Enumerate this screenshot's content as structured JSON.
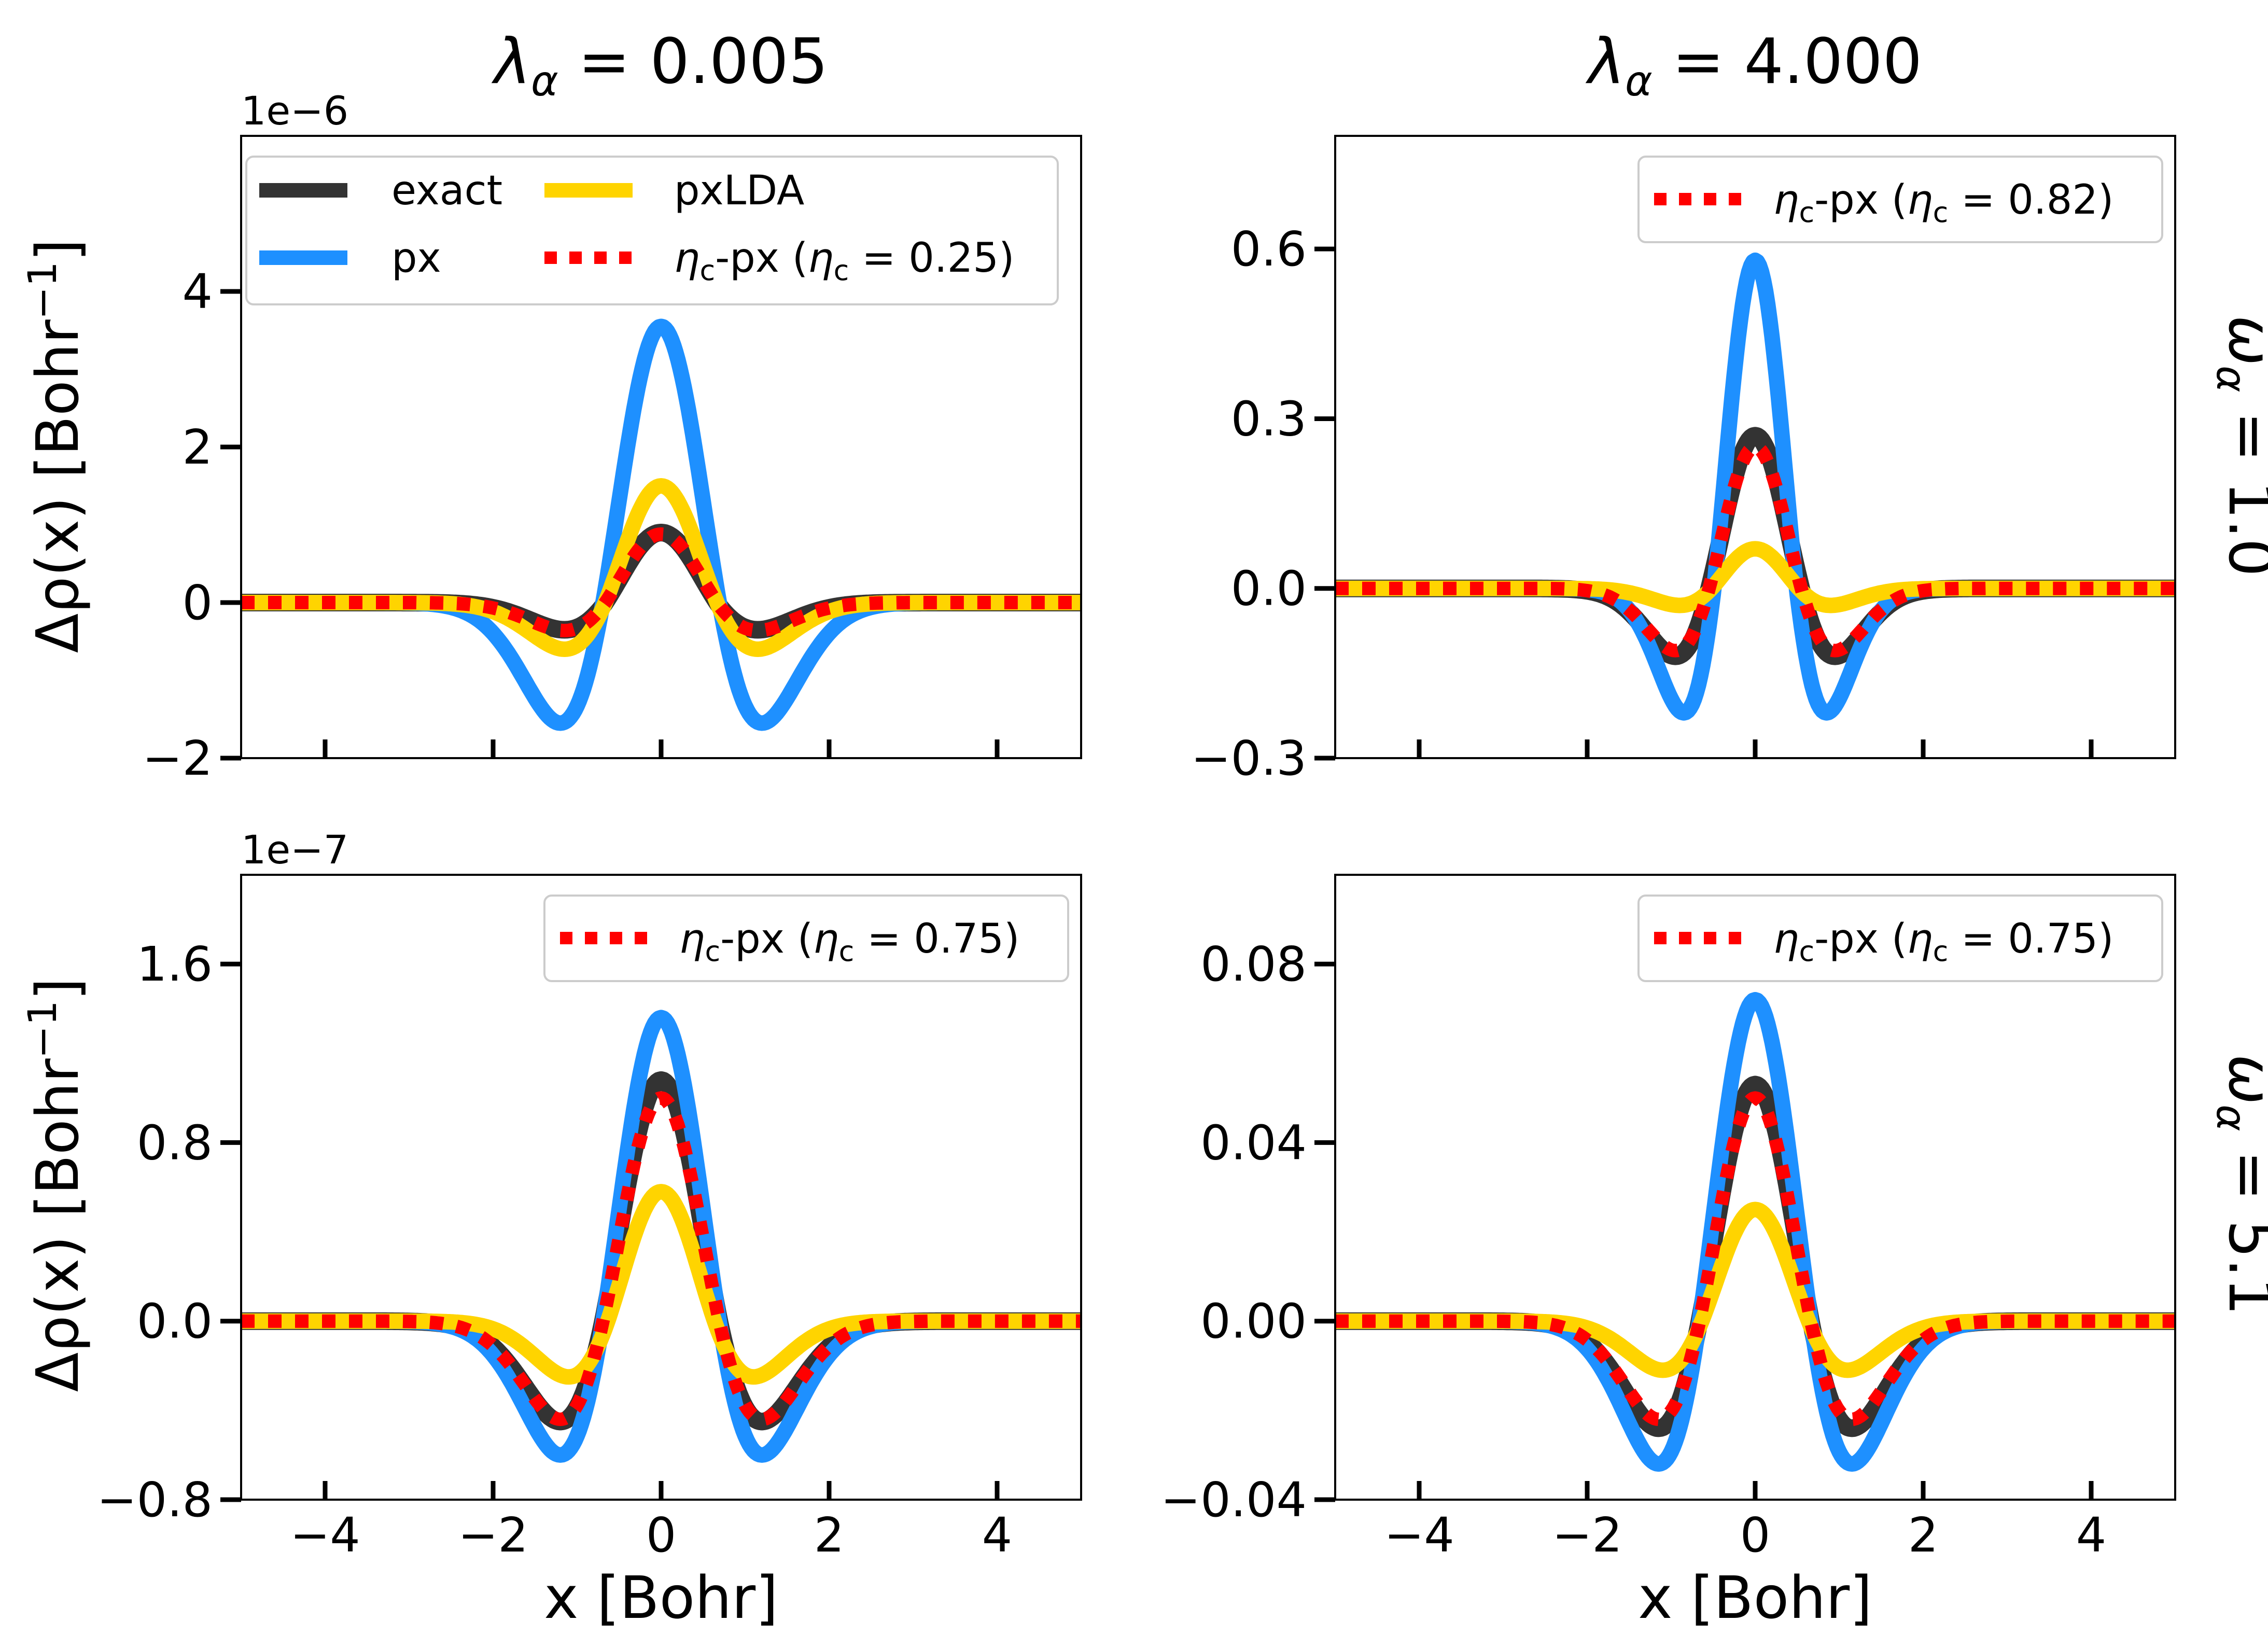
{
  "figure": {
    "columns": [
      {
        "sym": "λ",
        "sub": "α",
        "rest": " = 0.005"
      },
      {
        "sym": "λ",
        "sub": "α",
        "rest": " = 4.000"
      }
    ],
    "rows": [
      {
        "sym": "ω",
        "sub": "α",
        "rest": " = 1.0"
      },
      {
        "sym": "ω",
        "sub": "α",
        "rest": " = 5.1"
      }
    ],
    "ylabel": {
      "pre": "Δρ(x) [Bohr",
      "sup": "−1",
      "post": "]"
    },
    "xlabel": "x [Bohr]"
  },
  "colors": {
    "exact": "#333333",
    "px": "#1e90ff",
    "pxLDA": "#ffd400",
    "etac": "#ff0000"
  },
  "chart_data": [
    {
      "type": "line",
      "panel": "top-left",
      "xlim": [
        -5,
        5
      ],
      "ylim": [
        -2,
        6
      ],
      "offset_text": "1e−6",
      "xticks": [
        -4,
        -2,
        0,
        2,
        4
      ],
      "xtick_labels": [],
      "yticks": [
        -2,
        0,
        2,
        4
      ],
      "ytick_labels": [
        "−2",
        "0",
        "2",
        "4"
      ],
      "series": [
        {
          "name": "exact",
          "key": "exact",
          "style": "solid",
          "peak": 0.9,
          "min": -0.35,
          "minx": 1.15
        },
        {
          "name": "px",
          "key": "px",
          "style": "solid",
          "peak": 3.55,
          "min": -1.55,
          "minx": 1.2
        },
        {
          "name": "pxLDA",
          "key": "pxLDA",
          "style": "solid",
          "peak": 1.5,
          "min": -0.6,
          "minx": 1.15
        },
        {
          "name": "ηc-px (ηc = 0.25)",
          "key": "etac",
          "style": "dotted",
          "peak": 0.88,
          "min": -0.36,
          "minx": 1.15
        }
      ],
      "legend": {
        "placement": "top",
        "entries": [
          {
            "key": "exact",
            "text": "exact"
          },
          {
            "key": "pxLDA",
            "text": "pxLDA"
          },
          {
            "key": "px",
            "text": "px"
          },
          {
            "key": "etac",
            "eta": "η",
            "sub": "c",
            "mid": "-px (",
            "eta2": "η",
            "sub2": "c",
            "val": " = 0.25)"
          }
        ]
      }
    },
    {
      "type": "line",
      "panel": "top-right",
      "xlim": [
        -5,
        5
      ],
      "ylim": [
        -0.3,
        0.8
      ],
      "offset_text": "",
      "xticks": [
        -4,
        -2,
        0,
        2,
        4
      ],
      "xtick_labels": [],
      "yticks": [
        -0.3,
        0,
        0.3,
        0.6
      ],
      "ytick_labels": [
        "−0.3",
        "0.0",
        "0.3",
        "0.6"
      ],
      "series": [
        {
          "name": "exact",
          "key": "exact",
          "style": "solid",
          "peak": 0.27,
          "min": -0.12,
          "minx": 0.95
        },
        {
          "name": "px",
          "key": "px",
          "style": "solid",
          "peak": 0.58,
          "min": -0.22,
          "minx": 0.85
        },
        {
          "name": "pxLDA",
          "key": "pxLDA",
          "style": "solid",
          "peak": 0.07,
          "min": -0.03,
          "minx": 0.9
        },
        {
          "name": "ηc-px (ηc = 0.82)",
          "key": "etac",
          "style": "dotted",
          "peak": 0.25,
          "min": -0.11,
          "minx": 0.95
        }
      ],
      "legend": {
        "placement": "top-right",
        "entries": [
          {
            "key": "etac",
            "eta": "η",
            "sub": "c",
            "mid": "-px (",
            "eta2": "η",
            "sub2": "c",
            "val": " = 0.82)"
          }
        ]
      }
    },
    {
      "type": "line",
      "panel": "bottom-left",
      "xlim": [
        -5,
        5
      ],
      "ylim": [
        -0.8,
        2.0
      ],
      "offset_text": "1e−7",
      "xticks": [
        -4,
        -2,
        0,
        2,
        4
      ],
      "xtick_labels": [
        "−4",
        "−2",
        "0",
        "2",
        "4"
      ],
      "yticks": [
        -0.8,
        0,
        0.8,
        1.6
      ],
      "ytick_labels": [
        "−0.8",
        "0.0",
        "0.8",
        "1.6"
      ],
      "series": [
        {
          "name": "exact",
          "key": "exact",
          "style": "solid",
          "peak": 1.08,
          "min": -0.45,
          "minx": 1.2
        },
        {
          "name": "px",
          "key": "px",
          "style": "solid",
          "peak": 1.36,
          "min": -0.6,
          "minx": 1.2
        },
        {
          "name": "pxLDA",
          "key": "pxLDA",
          "style": "solid",
          "peak": 0.58,
          "min": -0.25,
          "minx": 1.1
        },
        {
          "name": "ηc-px (ηc = 0.75)",
          "key": "etac",
          "style": "dotted",
          "peak": 1.0,
          "min": -0.44,
          "minx": 1.2
        }
      ],
      "legend": {
        "placement": "top-right",
        "entries": [
          {
            "key": "etac",
            "eta": "η",
            "sub": "c",
            "mid": "-px (",
            "eta2": "η",
            "sub2": "c",
            "val": " = 0.75)"
          }
        ]
      }
    },
    {
      "type": "line",
      "panel": "bottom-right",
      "xlim": [
        -5,
        5
      ],
      "ylim": [
        -0.04,
        0.1
      ],
      "offset_text": "",
      "xticks": [
        -4,
        -2,
        0,
        2,
        4
      ],
      "xtick_labels": [
        "−4",
        "−2",
        "0",
        "2",
        "4"
      ],
      "yticks": [
        -0.04,
        0,
        0.04,
        0.08
      ],
      "ytick_labels": [
        "−0.04",
        "0.00",
        "0.04",
        "0.08"
      ],
      "series": [
        {
          "name": "exact",
          "key": "exact",
          "style": "solid",
          "peak": 0.053,
          "min": -0.024,
          "minx": 1.15
        },
        {
          "name": "px",
          "key": "px",
          "style": "solid",
          "peak": 0.072,
          "min": -0.032,
          "minx": 1.15
        },
        {
          "name": "pxLDA",
          "key": "pxLDA",
          "style": "solid",
          "peak": 0.025,
          "min": -0.011,
          "minx": 1.1
        },
        {
          "name": "ηc-px (ηc = 0.75)",
          "key": "etac",
          "style": "dotted",
          "peak": 0.05,
          "min": -0.022,
          "minx": 1.15
        }
      ],
      "legend": {
        "placement": "top-right",
        "entries": [
          {
            "key": "etac",
            "eta": "η",
            "sub": "c",
            "mid": "-px (",
            "eta2": "η",
            "sub2": "c",
            "val": " = 0.75)"
          }
        ]
      }
    }
  ]
}
